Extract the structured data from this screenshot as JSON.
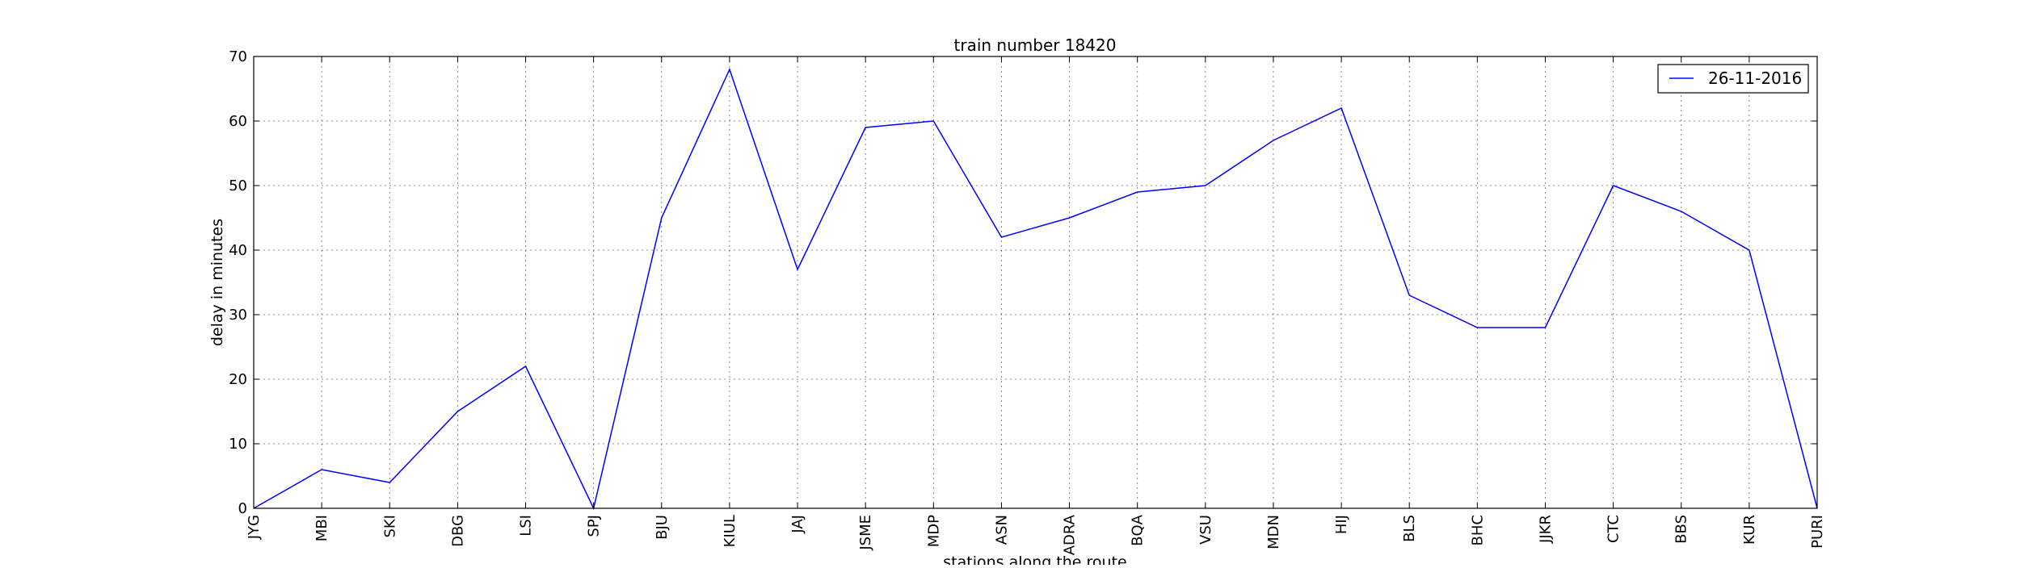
{
  "chart_data": {
    "type": "line",
    "title": "train number 18420",
    "xlabel": "stations along the route",
    "ylabel": "delay in minutes",
    "categories": [
      "JYG",
      "MBI",
      "SKI",
      "DBG",
      "LSI",
      "SPJ",
      "BJU",
      "KIUL",
      "JAJ",
      "JSME",
      "MDP",
      "ASN",
      "ADRA",
      "BQA",
      "VSU",
      "MDN",
      "HIJ",
      "BLS",
      "BHC",
      "JJKR",
      "CTC",
      "BBS",
      "KUR",
      "PURI"
    ],
    "series": [
      {
        "name": "26-11-2016",
        "color": "#0000ff",
        "values": [
          0,
          6,
          4,
          15,
          22,
          0,
          45,
          68,
          37,
          59,
          60,
          42,
          45,
          49,
          50,
          57,
          62,
          33,
          28,
          28,
          50,
          46,
          40,
          0
        ]
      }
    ],
    "ylim": [
      0,
      70
    ],
    "yticks": [
      0,
      10,
      20,
      30,
      40,
      50,
      60,
      70
    ],
    "grid": true,
    "grid_style": "dotted",
    "legend_position": "top-right"
  }
}
